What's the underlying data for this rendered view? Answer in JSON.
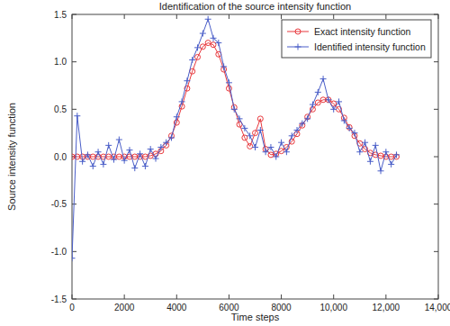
{
  "chart_data": {
    "type": "line",
    "title": "Identification of the source intensity function",
    "x_label": "Time steps",
    "y_label": "Source intensity function",
    "x": [
      0,
      200,
      400,
      600,
      800,
      1000,
      1200,
      1400,
      1600,
      1800,
      2000,
      2200,
      2400,
      2600,
      2800,
      3000,
      3200,
      3400,
      3600,
      3800,
      4000,
      4200,
      4400,
      4600,
      4800,
      5000,
      5200,
      5400,
      5600,
      5800,
      6000,
      6200,
      6400,
      6600,
      6800,
      7000,
      7200,
      7400,
      7600,
      7800,
      8000,
      8200,
      8400,
      8600,
      8800,
      9000,
      9200,
      9400,
      9600,
      9800,
      10000,
      10200,
      10400,
      10600,
      10800,
      11000,
      11200,
      11400,
      11600,
      11800,
      12000,
      12200,
      12400
    ],
    "series": [
      {
        "name": "Exact intensity function",
        "color": "#e8383d",
        "marker": "circle",
        "line_style": "solid",
        "values": [
          0,
          0,
          0,
          0,
          0,
          0,
          0,
          0,
          0,
          0,
          0,
          0,
          0,
          0,
          0,
          0.01,
          0.03,
          0.06,
          0.12,
          0.22,
          0.36,
          0.53,
          0.72,
          0.9,
          1.05,
          1.16,
          1.2,
          1.18,
          1.08,
          0.92,
          0.72,
          0.52,
          0.34,
          0.2,
          0.11,
          0.25,
          0.4,
          0.08,
          0.02,
          0.03,
          0.06,
          0.1,
          0.16,
          0.24,
          0.33,
          0.42,
          0.5,
          0.57,
          0.6,
          0.6,
          0.56,
          0.5,
          0.41,
          0.31,
          0.22,
          0.14,
          0.08,
          0.04,
          0.02,
          0.01,
          0,
          0,
          0
        ]
      },
      {
        "name": "Identified intensity function",
        "color": "#4a5ec8",
        "marker": "plus",
        "line_style": "solid",
        "values": [
          -1.07,
          0.43,
          -0.05,
          0.02,
          -0.1,
          0.05,
          -0.08,
          0.12,
          -0.03,
          0.18,
          -0.04,
          0.07,
          -0.12,
          0.03,
          -0.1,
          0.08,
          -0.02,
          0.1,
          0.15,
          0.2,
          0.42,
          0.58,
          0.8,
          1.02,
          1.15,
          1.3,
          1.45,
          1.25,
          1.2,
          0.95,
          0.78,
          0.5,
          0.4,
          0.3,
          0.22,
          0.1,
          0.28,
          0.05,
          0.1,
          0.0,
          0.15,
          0.05,
          0.22,
          0.28,
          0.35,
          0.4,
          0.55,
          0.68,
          0.82,
          0.6,
          0.5,
          0.58,
          0.38,
          0.3,
          0.25,
          0.05,
          0.15,
          -0.05,
          0.12,
          -0.15,
          0.05,
          -0.08,
          0.02
        ]
      }
    ],
    "xlim": [
      0,
      14000
    ],
    "xticks": [
      0,
      2000,
      4000,
      6000,
      8000,
      {
        "value": 10000,
        "label": "10,000"
      },
      {
        "value": 12000,
        "label": "12,000"
      },
      {
        "value": 14000,
        "label": "14,000"
      }
    ],
    "ylim": [
      -1.5,
      1.5
    ],
    "yticks": [
      -1.5,
      {
        "value": -1.0,
        "label": "-1.0"
      },
      -0.5,
      {
        "value": 0.0,
        "label": "0.0"
      },
      0.5,
      {
        "value": 1.0,
        "label": "1.0"
      },
      1.5
    ],
    "grid": false,
    "legend": "upper right"
  }
}
